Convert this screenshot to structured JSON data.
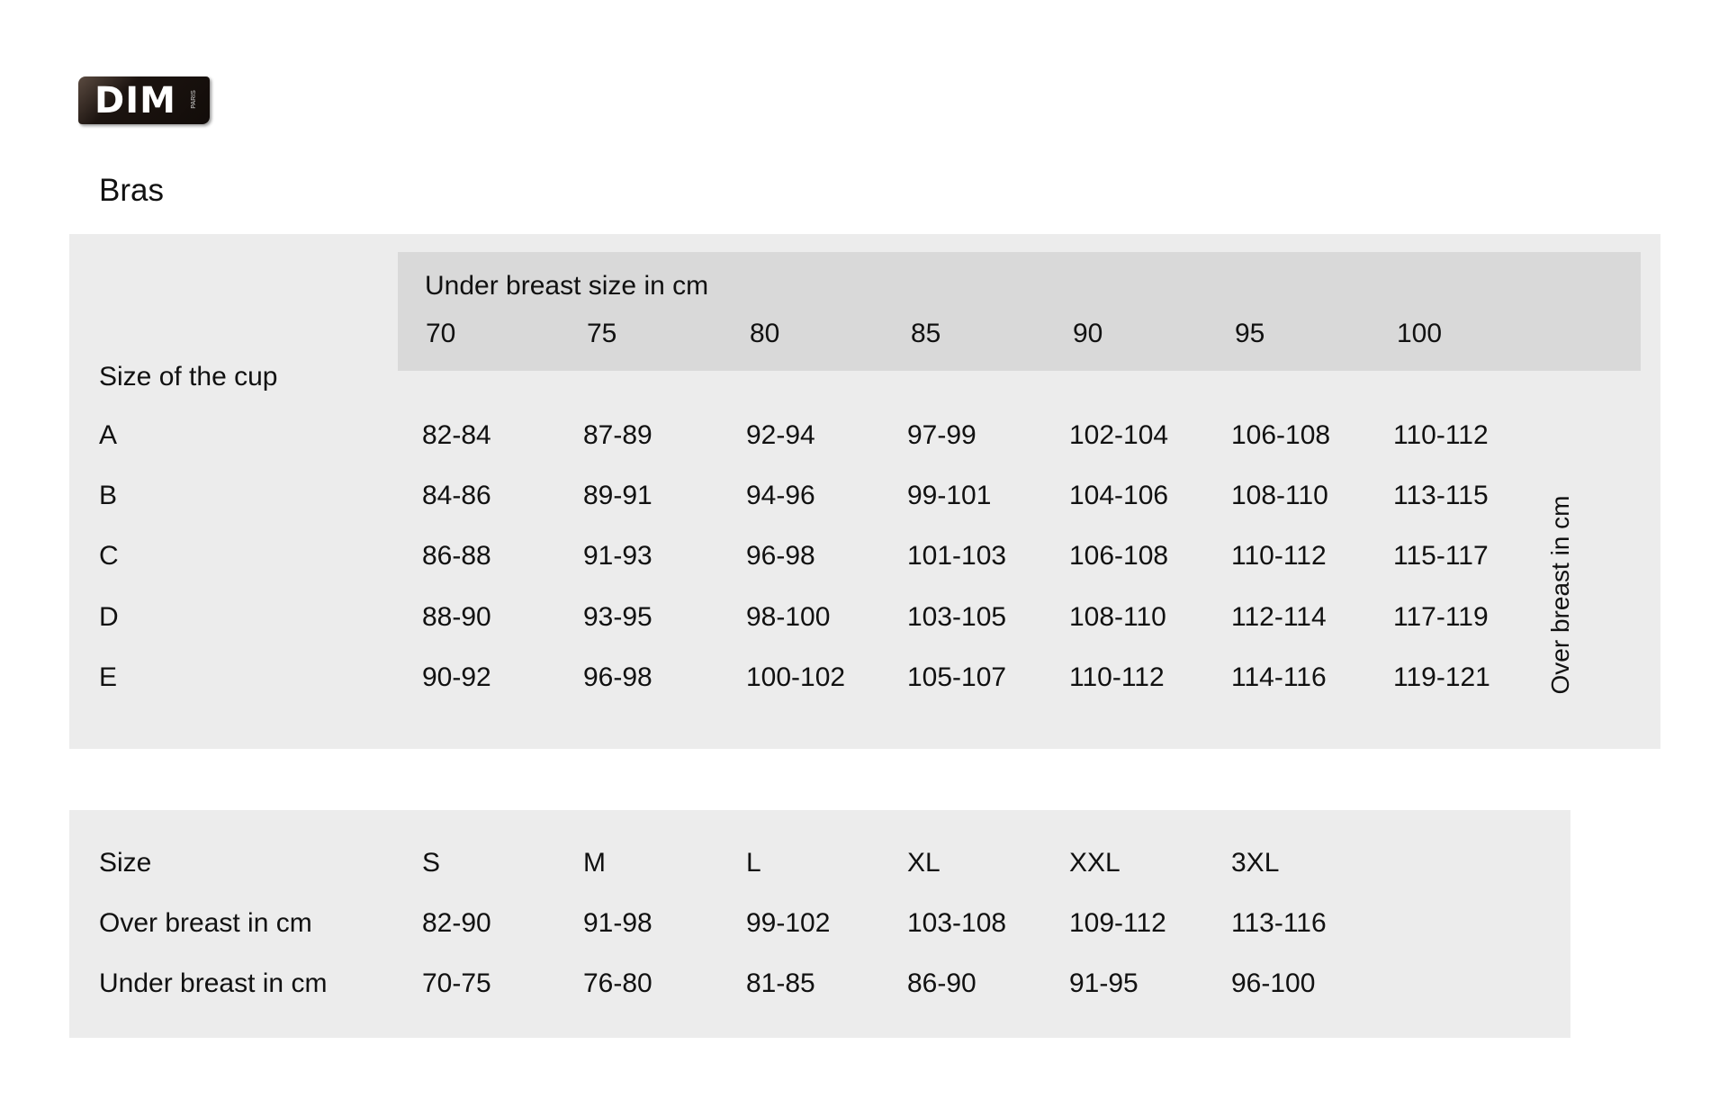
{
  "logo": {
    "text": "DIM",
    "subtext": "PARIS"
  },
  "title": "Bras",
  "cup_table": {
    "header_label": "Under breast size in cm",
    "under_breast_sizes": [
      "70",
      "75",
      "80",
      "85",
      "90",
      "95",
      "100"
    ],
    "row_header": "Size of the cup",
    "side_label": "Over breast in cm",
    "rows": [
      {
        "cup": "A",
        "values": [
          "82-84",
          "87-89",
          "92-94",
          "97-99",
          "102-104",
          "106-108",
          "110-112"
        ]
      },
      {
        "cup": "B",
        "values": [
          "84-86",
          "89-91",
          "94-96",
          "99-101",
          "104-106",
          "108-110",
          "113-115"
        ]
      },
      {
        "cup": "C",
        "values": [
          "86-88",
          "91-93",
          "96-98",
          "101-103",
          "106-108",
          "110-112",
          "115-117"
        ]
      },
      {
        "cup": "D",
        "values": [
          "88-90",
          "93-95",
          "98-100",
          "103-105",
          "108-110",
          "112-114",
          "117-119"
        ]
      },
      {
        "cup": "E",
        "values": [
          "90-92",
          "96-98",
          "100-102",
          "105-107",
          "110-112",
          "114-116",
          "119-121"
        ]
      }
    ]
  },
  "size_table": {
    "rows": [
      {
        "label": "Size",
        "values": [
          "S",
          "M",
          "L",
          "XL",
          "XXL",
          "3XL"
        ]
      },
      {
        "label": "Over breast in cm",
        "values": [
          "82-90",
          "91-98",
          "99-102",
          "103-108",
          "109-112",
          "113-116"
        ]
      },
      {
        "label": "Under breast in cm",
        "values": [
          "70-75",
          "76-80",
          "81-85",
          "86-90",
          "91-95",
          "96-100"
        ]
      }
    ]
  }
}
